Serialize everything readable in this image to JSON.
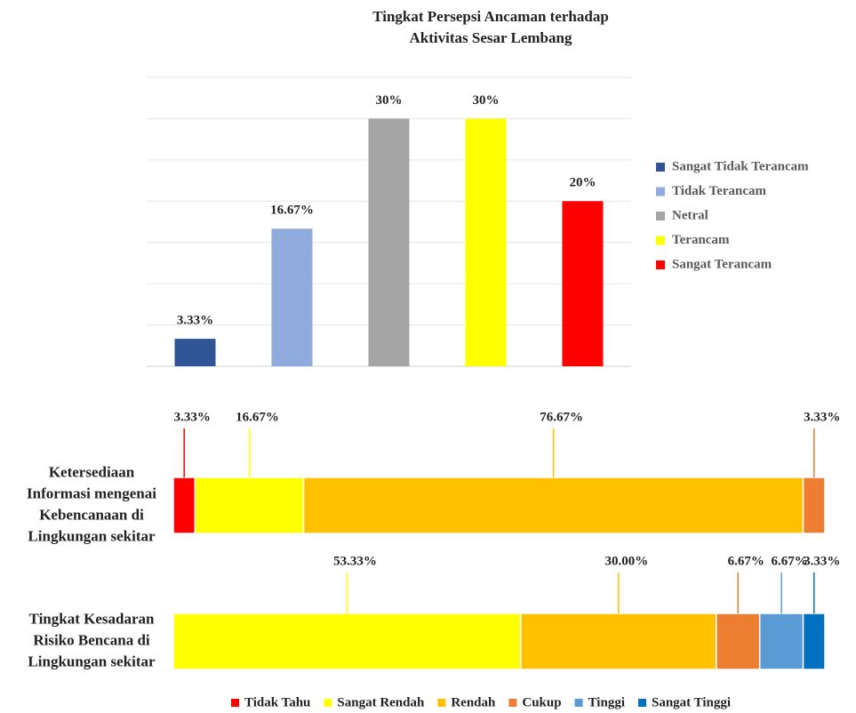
{
  "chart_data": [
    {
      "type": "bar",
      "title": [
        "Tingkat Persepsi Ancaman terhadap",
        "Aktivitas Sesar Lembang"
      ],
      "categories": [
        "Sangat Tidak Terancam",
        "Tidak Terancam",
        "Netral",
        "Terancam",
        "Sangat Terancam"
      ],
      "values": [
        3.33,
        16.67,
        30,
        30,
        20
      ],
      "value_labels": [
        "3.33%",
        "16.67%",
        "30%",
        "30%",
        "20%"
      ],
      "colors": [
        "#2f5597",
        "#8faadc",
        "#a5a5a5",
        "#ffff00",
        "#ff0000"
      ],
      "ylim": [
        0,
        35
      ],
      "yticks": [
        0,
        5,
        10,
        15,
        20,
        25,
        30,
        35
      ],
      "grid": true,
      "legend": "right"
    },
    {
      "type": "barh",
      "stacked": true,
      "categories": [
        [
          "Ketersediaan",
          "Informasi mengenai",
          "Kebencanaan di",
          "Lingkungan sekitar"
        ],
        [
          "Tingkat Kesadaran",
          "Risiko Bencana di",
          "Lingkungan sekitar"
        ]
      ],
      "series": [
        {
          "name": "Tidak Tahu",
          "color": "#ff0000",
          "values": [
            3.33,
            0
          ],
          "value_labels": [
            "3.33%",
            null
          ]
        },
        {
          "name": "Sangat Rendah",
          "color": "#ffff00",
          "values": [
            16.67,
            53.33
          ],
          "value_labels": [
            "16.67%",
            "53.33%"
          ]
        },
        {
          "name": "Rendah",
          "color": "#ffc000",
          "values": [
            76.67,
            30.0
          ],
          "value_labels": [
            "76.67%",
            "30.00%"
          ]
        },
        {
          "name": "Cukup",
          "color": "#ed7d31",
          "values": [
            3.33,
            6.67
          ],
          "value_labels": [
            "3.33%",
            "6.67%"
          ]
        },
        {
          "name": "Tinggi",
          "color": "#5b9bd5",
          "values": [
            0,
            6.67
          ],
          "value_labels": [
            null,
            "6.67%"
          ]
        },
        {
          "name": "Sangat Tinggi",
          "color": "#0070c0",
          "values": [
            0,
            3.33
          ],
          "value_labels": [
            null,
            "3.33%"
          ]
        }
      ],
      "xlim": [
        0,
        100
      ],
      "legend": "bottom"
    }
  ]
}
